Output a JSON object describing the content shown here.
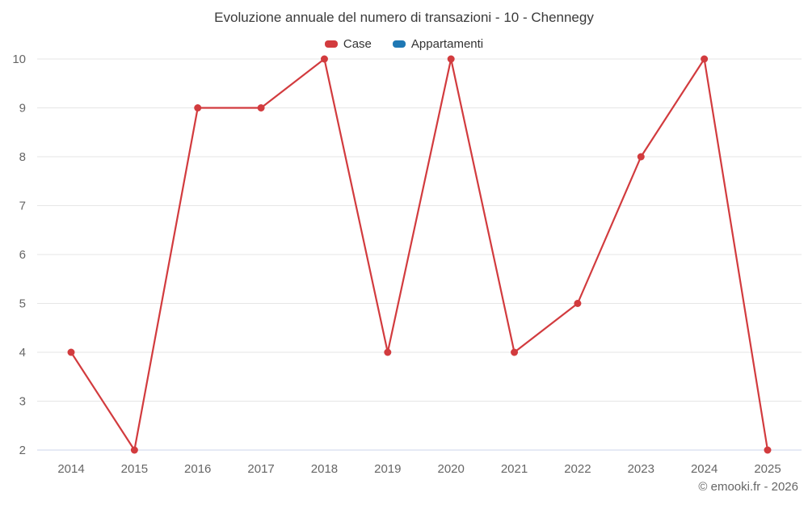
{
  "chart_data": {
    "type": "line",
    "title": "Evoluzione annuale del numero di transazioni - 10 - Chennegy",
    "categories": [
      "2014",
      "2015",
      "2016",
      "2017",
      "2018",
      "2019",
      "2020",
      "2021",
      "2022",
      "2023",
      "2024",
      "2025"
    ],
    "series": [
      {
        "name": "Case",
        "color": "#d23b3e",
        "values": [
          4,
          2,
          9,
          9,
          10,
          4,
          10,
          4,
          5,
          8,
          10,
          2
        ]
      },
      {
        "name": "Appartamenti",
        "color": "#1f78b4",
        "values": []
      }
    ],
    "ylim": [
      2,
      10
    ],
    "y_ticks": [
      2,
      3,
      4,
      5,
      6,
      7,
      8,
      9,
      10
    ],
    "grid": "horizontal",
    "legend_position": "top",
    "footer": "© emooki.fr - 2026"
  }
}
